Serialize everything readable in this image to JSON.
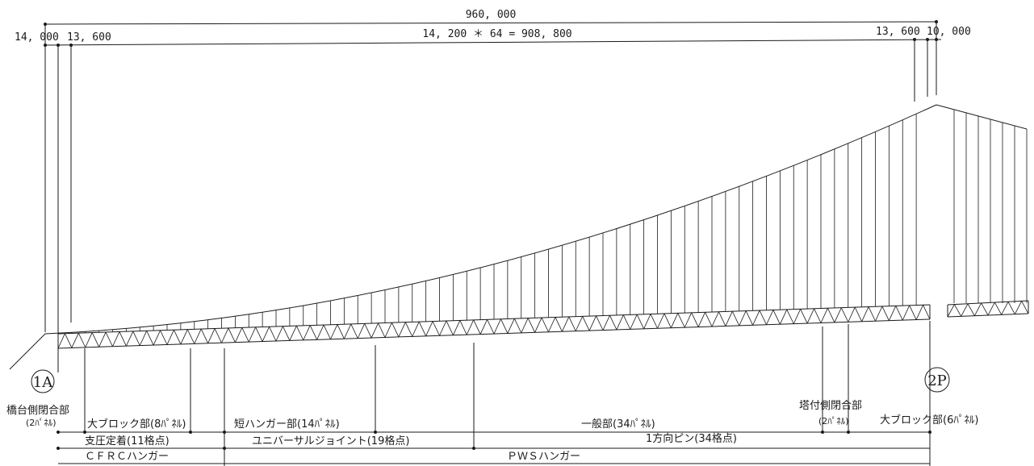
{
  "dimensions": {
    "total": "960, 000",
    "end_left": "14, 000",
    "panel_left": "13, 600",
    "main": "14, 200 ＊ 64 = 908, 800",
    "panel_right": "13, 600",
    "end_right": "10, 000"
  },
  "nodes": {
    "abutment": "1A",
    "pier": "2P"
  },
  "segments": {
    "abutment_closure": "橋台側閉合部",
    "abutment_closure_panels": "(2ﾊﾟﾈﾙ)",
    "big_block_left": "大ブロック部(8ﾊﾟﾈﾙ)",
    "short_hanger": "短ハンガー部(14ﾊﾟﾈﾙ)",
    "general": "一般部(34ﾊﾟﾈﾙ)",
    "tower_closure": "塔付側閉合部",
    "tower_closure_panels": "(2ﾊﾟﾈﾙ)",
    "big_block_right": "大ブロック部(6ﾊﾟﾈﾙ)"
  },
  "bearings": {
    "fixed": "支圧定着(11格点)",
    "universal": "ユニバーサルジョイント(19格点)",
    "one_way": "1方向ピン(34格点)"
  },
  "hangers": {
    "cfrc": "ＣＦＲＣハンガー",
    "pws": "ＰＷＳハンガー"
  }
}
